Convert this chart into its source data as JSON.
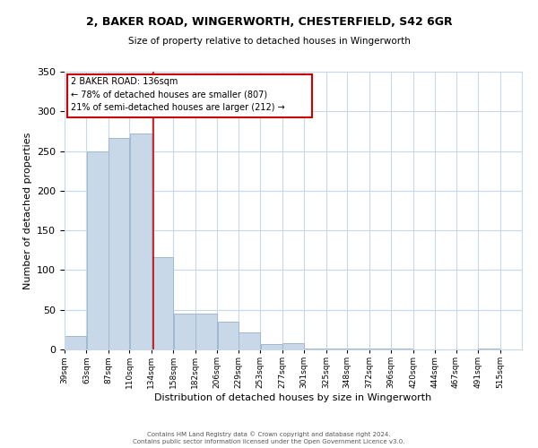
{
  "title1": "2, BAKER ROAD, WINGERWORTH, CHESTERFIELD, S42 6GR",
  "title2": "Size of property relative to detached houses in Wingerworth",
  "xlabel": "Distribution of detached houses by size in Wingerworth",
  "ylabel": "Number of detached properties",
  "bar_left_edges": [
    39,
    63,
    87,
    110,
    134,
    158,
    182,
    206,
    229,
    253,
    277,
    301,
    325,
    348,
    372,
    396,
    420,
    444,
    467,
    491
  ],
  "bar_widths": [
    24,
    24,
    23,
    24,
    24,
    24,
    24,
    23,
    24,
    24,
    24,
    24,
    23,
    24,
    24,
    24,
    24,
    23,
    24,
    24
  ],
  "bar_heights": [
    17,
    250,
    267,
    272,
    116,
    45,
    45,
    35,
    22,
    7,
    8,
    1,
    1,
    1,
    1,
    1,
    0,
    0,
    0,
    1
  ],
  "tick_labels": [
    "39sqm",
    "63sqm",
    "87sqm",
    "110sqm",
    "134sqm",
    "158sqm",
    "182sqm",
    "206sqm",
    "229sqm",
    "253sqm",
    "277sqm",
    "301sqm",
    "325sqm",
    "348sqm",
    "372sqm",
    "396sqm",
    "420sqm",
    "444sqm",
    "467sqm",
    "491sqm",
    "515sqm"
  ],
  "tick_positions": [
    39,
    63,
    87,
    110,
    134,
    158,
    182,
    206,
    229,
    253,
    277,
    301,
    325,
    348,
    372,
    396,
    420,
    444,
    467,
    491,
    515
  ],
  "bar_color": "#c8d8e8",
  "bar_edge_color": "#a0b8d0",
  "vline_x": 136,
  "vline_color": "#cc0000",
  "ylim": [
    0,
    350
  ],
  "yticks": [
    0,
    50,
    100,
    150,
    200,
    250,
    300,
    350
  ],
  "xlim": [
    39,
    539
  ],
  "annotation_line1": "2 BAKER ROAD: 136sqm",
  "annotation_line2": "← 78% of detached houses are smaller (807)",
  "annotation_line3": "21% of semi-detached houses are larger (212) →",
  "footer1": "Contains HM Land Registry data © Crown copyright and database right 2024.",
  "footer2": "Contains public sector information licensed under the Open Government Licence v3.0.",
  "bg_color": "#ffffff",
  "grid_color": "#c8d8e8"
}
